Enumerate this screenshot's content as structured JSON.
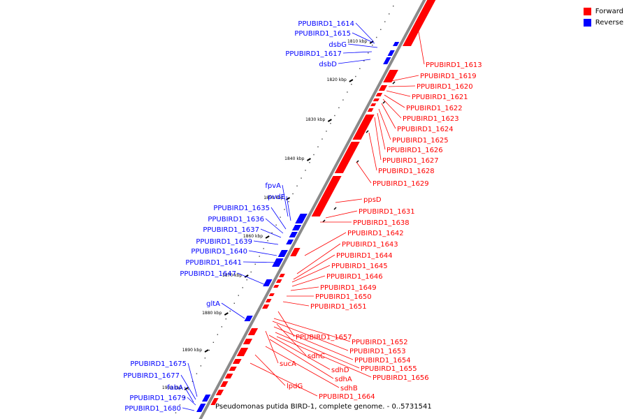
{
  "legend": {
    "forward": {
      "label": "Forward",
      "color": "#ff0000"
    },
    "reverse": {
      "label": "Reverse",
      "color": "#0000ff"
    }
  },
  "caption": "Pseudomonas putida BIRD-1, complete genome. - 0..5731541",
  "axis": {
    "ticks": [
      "1810 kbp",
      "1820 kbp",
      "1830 kbp",
      "1840 kbp",
      "1850 kbp",
      "1860 kbp",
      "1870 kbp",
      "1880 kbp",
      "1890 kbp",
      "1900 kbp"
    ]
  },
  "genes": {
    "reverse": [
      "PPUBIRD1_1614",
      "PPUBIRD1_1615",
      "dsbG",
      "PPUBIRD1_1617",
      "dsbD",
      "fpvA",
      "pvdE",
      "PPUBIRD1_1635",
      "PPUBIRD1_1636",
      "PPUBIRD1_1637",
      "PPUBIRD1_1639",
      "PPUBIRD1_1640",
      "PPUBIRD1_1641",
      "PPUBIRD1_1647",
      "gltA",
      "PPUBIRD1_1675",
      "PPUBIRD1_1677",
      "fabA",
      "PPUBIRD1_1679",
      "PPUBIRD1_1680"
    ],
    "forward": [
      "PPUBIRD1_1613",
      "PPUBIRD1_1619",
      "PPUBIRD1_1620",
      "PPUBIRD1_1621",
      "PPUBIRD1_1622",
      "PPUBIRD1_1623",
      "PPUBIRD1_1624",
      "PPUBIRD1_1625",
      "PPUBIRD1_1626",
      "PPUBIRD1_1627",
      "PPUBIRD1_1628",
      "PPUBIRD1_1629",
      "ppsD",
      "PPUBIRD1_1631",
      "PPUBIRD1_1638",
      "PPUBIRD1_1642",
      "PPUBIRD1_1643",
      "PPUBIRD1_1644",
      "PPUBIRD1_1645",
      "PPUBIRD1_1646",
      "PPUBIRD1_1649",
      "PPUBIRD1_1650",
      "PPUBIRD1_1651",
      "PPUBIRD1_1657",
      "PPUBIRD1_1652",
      "PPUBIRD1_1653",
      "sdhC",
      "PPUBIRD1_1654",
      "sucA",
      "sdhD",
      "PPUBIRD1_1655",
      "sdhA",
      "PPUBIRD1_1656",
      "sdhB",
      "lpdG",
      "PPUBIRD1_1664"
    ]
  }
}
